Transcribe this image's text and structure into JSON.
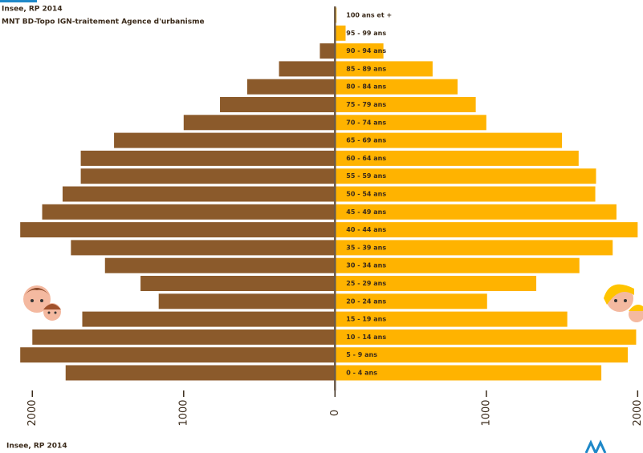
{
  "chart_data": {
    "type": "pyramid",
    "sources": [
      "Insee, RP 2014",
      "MNT BD-Topo IGN-traitement Agence d'urbanisme"
    ],
    "footer": "Insee, RP 2014",
    "categories": [
      "100 ans et +",
      "95 - 99 ans",
      "90 - 94 ans",
      "85 - 89 ans",
      "80 - 84 ans",
      "75 - 79 ans",
      "70 - 74 ans",
      "65 - 69 ans",
      "60 - 64 ans",
      "55 - 59 ans",
      "50 - 54 ans",
      "45 - 49 ans",
      "40 - 44 ans",
      "35 - 39 ans",
      "30 - 34 ans",
      "25 - 29 ans",
      "20 - 24 ans",
      "15 - 19 ans",
      "10 - 14 ans",
      "5 - 9 ans",
      "0 - 4 ans"
    ],
    "series": [
      {
        "color": "#8b5a2b",
        "values": [
          -5,
          0,
          -100,
          -370,
          -580,
          -760,
          -1000,
          -1460,
          -1680,
          -1680,
          -1800,
          -1935,
          -2080,
          -1745,
          -1520,
          -1285,
          -1165,
          -1670,
          -2000,
          -2080,
          -1780
        ]
      },
      {
        "color": "#ffb300",
        "values": [
          10,
          70,
          320,
          645,
          810,
          930,
          1000,
          1500,
          1610,
          1725,
          1720,
          1860,
          2000,
          1835,
          1615,
          1330,
          1005,
          1535,
          1990,
          1935,
          1760
        ]
      }
    ],
    "xlim": [
      -2150,
      2030
    ],
    "xticks": [
      {
        "value": -2000,
        "label": "2000"
      },
      {
        "value": -1000,
        "label": "1000"
      },
      0,
      1000,
      2000
    ]
  }
}
